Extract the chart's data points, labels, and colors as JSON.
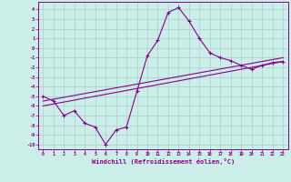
{
  "xlabel": "Windchill (Refroidissement éolien,°C)",
  "bg_color": "#cceee8",
  "line_color": "#880088",
  "grid_color": "#aacccc",
  "xlim": [
    -0.5,
    23.5
  ],
  "ylim": [
    -10.5,
    4.8
  ],
  "xticks": [
    0,
    1,
    2,
    3,
    4,
    5,
    6,
    7,
    8,
    9,
    10,
    11,
    12,
    13,
    14,
    15,
    16,
    17,
    18,
    19,
    20,
    21,
    22,
    23
  ],
  "yticks": [
    4,
    3,
    2,
    1,
    0,
    -1,
    -2,
    -3,
    -4,
    -5,
    -6,
    -7,
    -8,
    -9,
    -10
  ],
  "data_x": [
    0,
    1,
    2,
    3,
    4,
    5,
    6,
    7,
    8,
    9,
    10,
    11,
    12,
    13,
    14,
    15,
    16,
    17,
    18,
    19,
    20,
    21,
    22,
    23
  ],
  "data_y": [
    -5.0,
    -5.5,
    -7.0,
    -6.5,
    -7.8,
    -8.2,
    -10.0,
    -8.5,
    -8.2,
    -4.5,
    -0.8,
    0.8,
    3.7,
    4.2,
    2.8,
    1.0,
    -0.5,
    -1.0,
    -1.3,
    -1.8,
    -2.2,
    -1.8,
    -1.5,
    -1.4
  ],
  "ref_line1_x": [
    0,
    23
  ],
  "ref_line1_y": [
    -5.5,
    -1.0
  ],
  "ref_line2_x": [
    0,
    23
  ],
  "ref_line2_y": [
    -6.0,
    -1.4
  ]
}
